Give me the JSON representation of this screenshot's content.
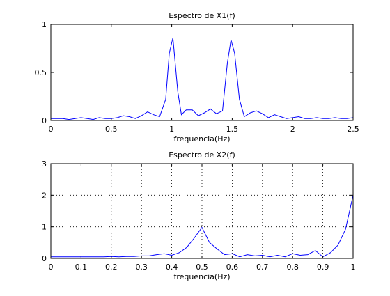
{
  "chart_data": [
    {
      "type": "line",
      "title": "Espectro de X1(f)",
      "xlabel": "frequencia(Hz)",
      "ylabel": "",
      "xlim": [
        0,
        2.5
      ],
      "ylim": [
        0,
        1
      ],
      "xticks": [
        0,
        0.5,
        1,
        1.5,
        2,
        2.5
      ],
      "xtick_labels": [
        "0",
        "0.5",
        "1",
        "1.5",
        "2",
        "2.5"
      ],
      "yticks": [
        0,
        0.5,
        1
      ],
      "ytick_labels": [
        "0",
        "0.5",
        "1"
      ],
      "grid": false,
      "line_color": "#0000ff",
      "series": [
        {
          "x": [
            0,
            0.05,
            0.1,
            0.15,
            0.2,
            0.25,
            0.3,
            0.35,
            0.4,
            0.45,
            0.5,
            0.55,
            0.6,
            0.65,
            0.7,
            0.75,
            0.8,
            0.85,
            0.9,
            0.95,
            0.98,
            1.01,
            1.05,
            1.08,
            1.12,
            1.17,
            1.22,
            1.27,
            1.32,
            1.37,
            1.42,
            1.46,
            1.49,
            1.52,
            1.56,
            1.6,
            1.65,
            1.7,
            1.75,
            1.8,
            1.85,
            1.9,
            1.95,
            2.0,
            2.05,
            2.1,
            2.15,
            2.2,
            2.25,
            2.3,
            2.35,
            2.4,
            2.45,
            2.5
          ],
          "y": [
            0.02,
            0.02,
            0.02,
            0.01,
            0.02,
            0.03,
            0.02,
            0.01,
            0.03,
            0.02,
            0.02,
            0.03,
            0.05,
            0.04,
            0.02,
            0.05,
            0.09,
            0.06,
            0.04,
            0.22,
            0.7,
            0.86,
            0.3,
            0.06,
            0.11,
            0.11,
            0.05,
            0.08,
            0.12,
            0.07,
            0.1,
            0.6,
            0.84,
            0.7,
            0.22,
            0.04,
            0.08,
            0.1,
            0.07,
            0.03,
            0.06,
            0.04,
            0.02,
            0.03,
            0.04,
            0.02,
            0.02,
            0.03,
            0.02,
            0.02,
            0.03,
            0.02,
            0.02,
            0.03
          ]
        }
      ]
    },
    {
      "type": "line",
      "title": "Espectro de X2(f)",
      "xlabel": "frequencia(Hz)",
      "ylabel": "",
      "xlim": [
        0,
        1
      ],
      "ylim": [
        0,
        3
      ],
      "xticks": [
        0,
        0.1,
        0.2,
        0.3,
        0.4,
        0.5,
        0.6,
        0.7,
        0.8,
        0.9,
        1
      ],
      "xtick_labels": [
        "0",
        "0.1",
        "0.2",
        "0.3",
        "0.4",
        "0.5",
        "0.6",
        "0.7",
        "0.8",
        "0.9",
        "1"
      ],
      "yticks": [
        0,
        1,
        2,
        3
      ],
      "ytick_labels": [
        "0",
        "1",
        "2",
        "3"
      ],
      "grid": true,
      "line_color": "#0000ff",
      "series": [
        {
          "x": [
            0,
            0.025,
            0.05,
            0.075,
            0.1,
            0.125,
            0.15,
            0.175,
            0.2,
            0.225,
            0.25,
            0.275,
            0.3,
            0.325,
            0.35,
            0.375,
            0.4,
            0.425,
            0.45,
            0.475,
            0.5,
            0.525,
            0.55,
            0.575,
            0.6,
            0.625,
            0.65,
            0.675,
            0.7,
            0.725,
            0.75,
            0.775,
            0.8,
            0.825,
            0.85,
            0.875,
            0.9,
            0.925,
            0.95,
            0.975,
            1.0
          ],
          "y": [
            0.05,
            0.05,
            0.05,
            0.05,
            0.05,
            0.05,
            0.05,
            0.05,
            0.06,
            0.05,
            0.06,
            0.06,
            0.08,
            0.08,
            0.12,
            0.15,
            0.1,
            0.18,
            0.35,
            0.65,
            0.98,
            0.5,
            0.3,
            0.12,
            0.15,
            0.05,
            0.12,
            0.08,
            0.1,
            0.05,
            0.1,
            0.05,
            0.15,
            0.1,
            0.12,
            0.25,
            0.05,
            0.18,
            0.42,
            0.92,
            2.0
          ]
        }
      ]
    }
  ]
}
